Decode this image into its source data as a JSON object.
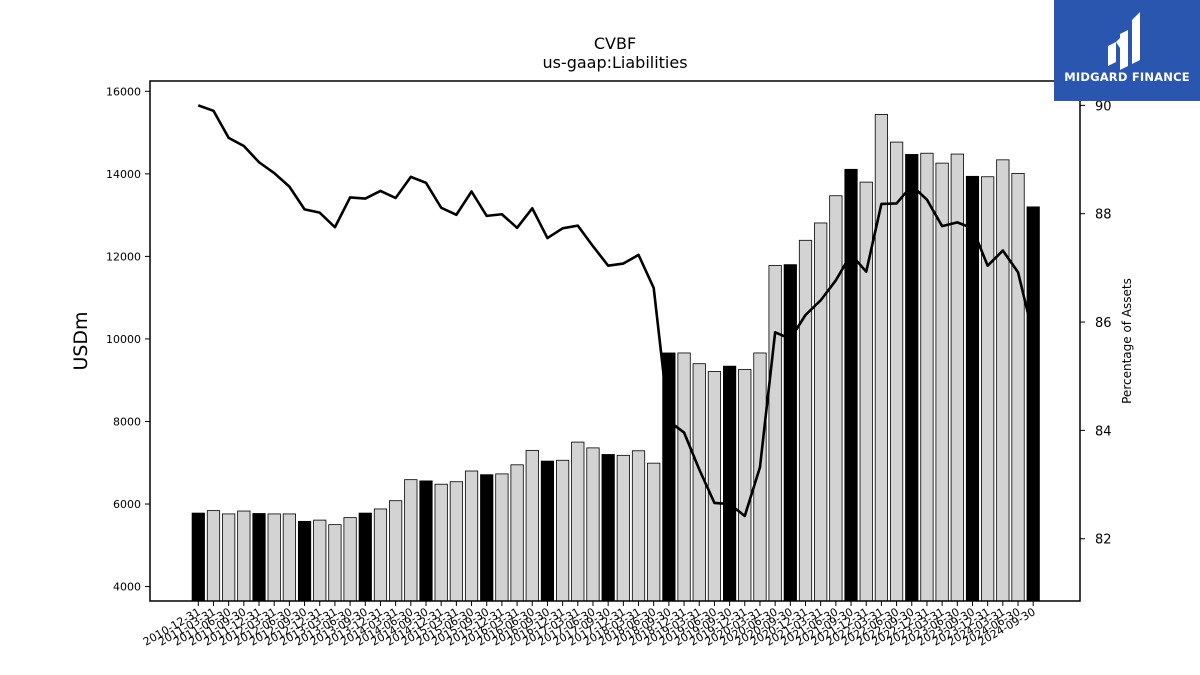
{
  "chart_data": {
    "type": "bar",
    "title": "CVBF",
    "subtitle": "us-gaap:Liabilities",
    "ylabel": "USDm",
    "y2label": "Percentage of Assets",
    "ylim": [
      3650,
      16250
    ],
    "y2lim": [
      80.85,
      90.45
    ],
    "yticks": [
      4000,
      6000,
      8000,
      10000,
      12000,
      14000,
      16000
    ],
    "y2ticks": [
      82,
      84,
      86,
      88,
      90
    ],
    "colors": {
      "bar": "#d3d3d3",
      "bar_highlight": "#000000",
      "line": "#000000",
      "bar_edge": "#000000"
    },
    "categories": [
      "2010-12-31",
      "2011-03-31",
      "2011-06-30",
      "2011-09-30",
      "2011-12-31",
      "2012-03-31",
      "2012-06-30",
      "2012-09-30",
      "2012-12-31",
      "2013-03-31",
      "2013-06-30",
      "2013-09-30",
      "2013-12-31",
      "2014-03-31",
      "2014-06-30",
      "2014-09-30",
      "2014-12-31",
      "2015-03-31",
      "2015-06-30",
      "2015-09-30",
      "2015-12-31",
      "2016-03-31",
      "2016-06-30",
      "2016-09-30",
      "2016-12-31",
      "2017-03-31",
      "2017-06-30",
      "2017-09-30",
      "2017-12-31",
      "2018-03-31",
      "2018-06-30",
      "2018-09-30",
      "2018-12-31",
      "2019-03-31",
      "2019-06-30",
      "2019-09-30",
      "2019-12-31",
      "2020-03-31",
      "2020-06-30",
      "2020-09-30",
      "2020-12-31",
      "2021-03-31",
      "2021-06-30",
      "2021-09-30",
      "2021-12-31",
      "2022-03-31",
      "2022-06-30",
      "2022-09-30",
      "2022-12-31",
      "2023-03-31",
      "2023-06-30",
      "2023-09-30",
      "2023-12-31",
      "2024-03-31",
      "2024-06-30",
      "2024-09-30"
    ],
    "series": [
      {
        "type": "bar",
        "values": [
          5780,
          5840,
          5760,
          5830,
          5770,
          5760,
          5760,
          5580,
          5610,
          5500,
          5670,
          5780,
          5880,
          6080,
          6590,
          6560,
          6480,
          6540,
          6800,
          6710,
          6730,
          6950,
          7300,
          7040,
          7060,
          7500,
          7360,
          7200,
          7180,
          7290,
          6990,
          9660,
          9660,
          9400,
          9210,
          9340,
          9260,
          9660,
          11780,
          11800,
          12390,
          12810,
          13470,
          14110,
          13800,
          15440,
          14770,
          14470,
          14500,
          14260,
          14480,
          13940,
          13930,
          14340,
          14010,
          13200
        ],
        "highlight": [
          true,
          false,
          false,
          false,
          true,
          false,
          false,
          true,
          false,
          false,
          false,
          true,
          false,
          false,
          false,
          true,
          false,
          false,
          false,
          true,
          false,
          false,
          false,
          true,
          false,
          false,
          false,
          true,
          false,
          false,
          false,
          true,
          false,
          false,
          false,
          true,
          false,
          false,
          false,
          true,
          false,
          false,
          false,
          true,
          false,
          false,
          false,
          true,
          false,
          false,
          false,
          true,
          false,
          false,
          false,
          true
        ]
      },
      {
        "type": "line",
        "axis": "right",
        "values": [
          90.0,
          89.9,
          89.4,
          89.25,
          88.95,
          88.75,
          88.5,
          88.08,
          88.02,
          87.75,
          88.3,
          88.28,
          88.42,
          88.29,
          88.68,
          88.57,
          88.11,
          87.98,
          88.41,
          87.96,
          87.99,
          87.74,
          88.1,
          87.55,
          87.73,
          87.78,
          87.4,
          87.04,
          87.08,
          87.24,
          86.63,
          84.17,
          83.96,
          83.28,
          82.66,
          82.64,
          82.42,
          83.32,
          85.81,
          85.69,
          86.13,
          86.4,
          86.77,
          87.25,
          86.93,
          88.18,
          88.19,
          88.52,
          88.26,
          87.77,
          87.84,
          87.73,
          87.04,
          87.32,
          86.92,
          85.76
        ]
      }
    ]
  },
  "logo": {
    "text": "MIDGARD FINANCE"
  }
}
